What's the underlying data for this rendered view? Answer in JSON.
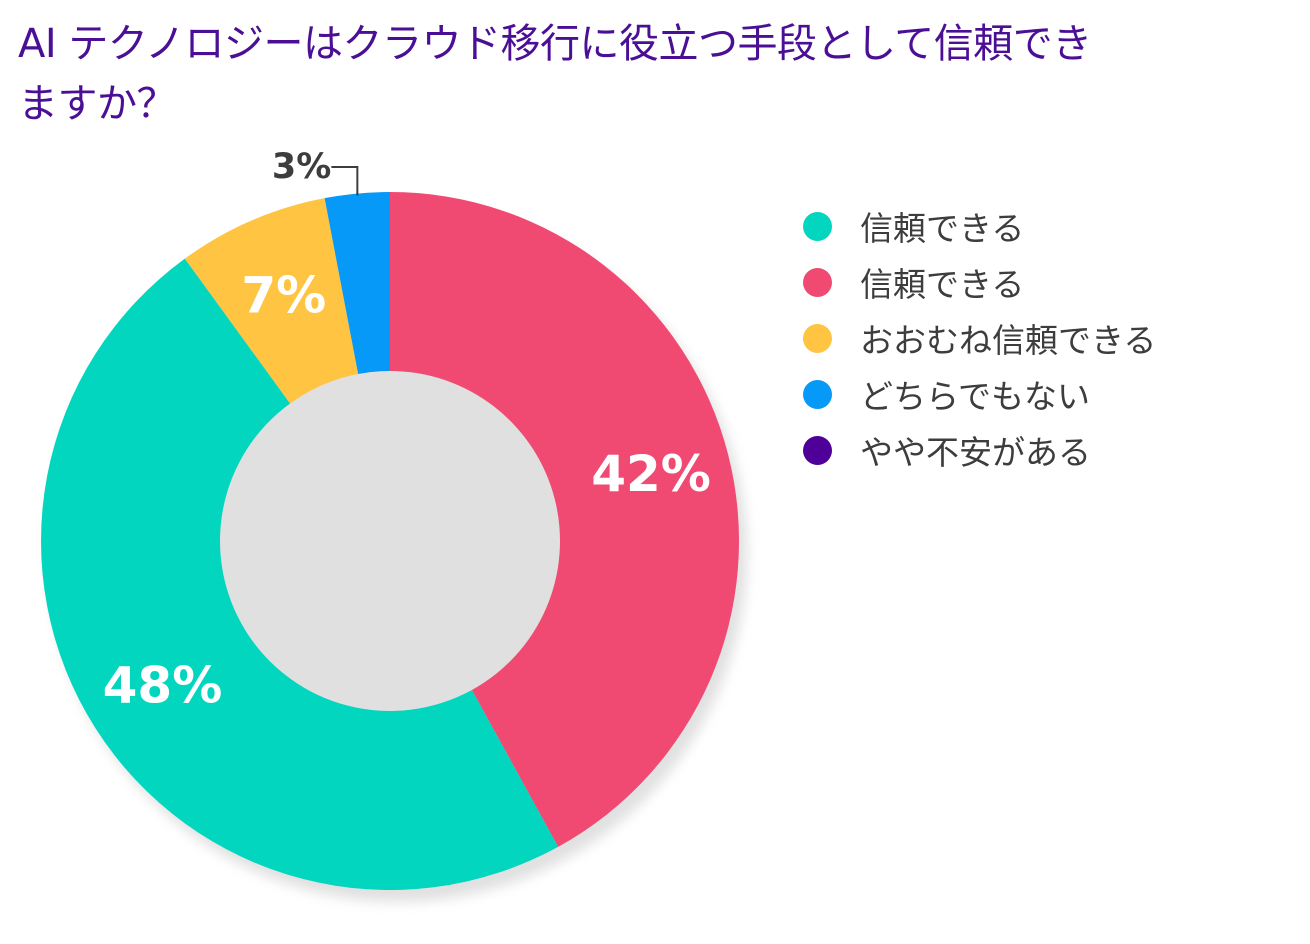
{
  "chart_data": {
    "type": "pie",
    "title": "AI テクノロジーはクラウド移行に役立つ手段として信頼できますか？",
    "categories": [
      "信頼できる",
      "信頼できる",
      "おおむね信頼できる",
      "どちらでもない",
      "やや不安がある"
    ],
    "values": [
      48,
      42,
      7,
      3,
      0
    ],
    "colors": [
      "#03d6bf",
      "#f04a72",
      "#ffc542",
      "#0699f7",
      "#4e0099"
    ],
    "data_labels": [
      "48%",
      "42%",
      "7%",
      "3%",
      ""
    ],
    "slice_order": [
      1,
      0,
      2,
      3
    ],
    "legend_position": "right",
    "donut": true
  }
}
